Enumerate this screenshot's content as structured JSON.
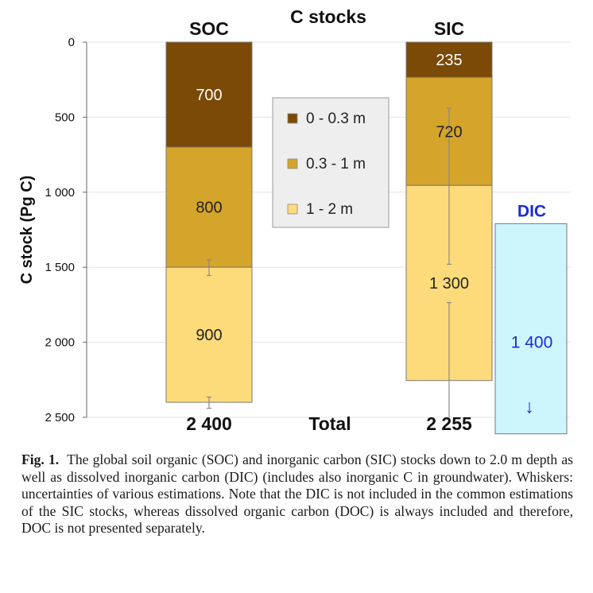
{
  "chart_data": {
    "type": "bar",
    "title": "C stocks",
    "ylabel": "C stock (Pg C)",
    "xlabel": "",
    "ylim": [
      0,
      2500
    ],
    "y_inverted": true,
    "yticks": [
      0,
      500,
      1000,
      1500,
      2000,
      2500
    ],
    "ytick_labels": [
      "0",
      "500",
      "1 000",
      "1 500",
      "2 000",
      "2 500"
    ],
    "grid": true,
    "legend_position": "center",
    "legend": [
      {
        "label": "0 - 0.3 m",
        "color": "#7a4a06"
      },
      {
        "label": "0.3 - 1 m",
        "color": "#d5a42a"
      },
      {
        "label": "1 - 2 m",
        "color": "#fedb7a"
      }
    ],
    "stacks": [
      {
        "name": "SOC",
        "segments": [
          {
            "layer": "0 - 0.3 m",
            "value": 700,
            "label": "700"
          },
          {
            "layer": "0.3 - 1 m",
            "value": 800,
            "label": "800"
          },
          {
            "layer": "1 - 2 m",
            "value": 900,
            "label": "900"
          }
        ],
        "whiskers": [
          {
            "center": 1500,
            "low": 1450,
            "high": 1555
          },
          {
            "center": 2400,
            "low": 2365,
            "high": 2440
          }
        ],
        "total": 2400,
        "total_label": "2 400"
      },
      {
        "name": "SIC",
        "segments": [
          {
            "layer": "0 - 0.3 m",
            "value": 235,
            "label": "235"
          },
          {
            "layer": "0.3 - 1 m",
            "value": 720,
            "label": "720"
          },
          {
            "layer": "1 - 2 m",
            "value": 1300,
            "label": "1 300"
          }
        ],
        "whiskers": [
          {
            "center": 955,
            "low": 440,
            "high": 1480
          },
          {
            "center": 2255,
            "low": 1735,
            "high": 2500
          }
        ],
        "total": 2255,
        "total_label": "2 255"
      },
      {
        "name": "DIC",
        "start": 1210,
        "value": 1400,
        "label": "1 400",
        "color": "#ccf6fc",
        "arrow": "↓"
      }
    ],
    "total_caption": "Total"
  },
  "caption": {
    "label": "Fig. 1.",
    "text": "The global soil organic (SOC) and inorganic carbon (SIC) stocks down to 2.0 m depth as well as dissolved inorganic carbon (DIC) (includes also inorganic C in groundwater). Whiskers: uncertainties of various estimations. Note that the DIC is not included in the common estimations of the SIC stocks, whereas dissolved organic carbon (DOC) is always included and therefore, DOC is not presented separately."
  }
}
